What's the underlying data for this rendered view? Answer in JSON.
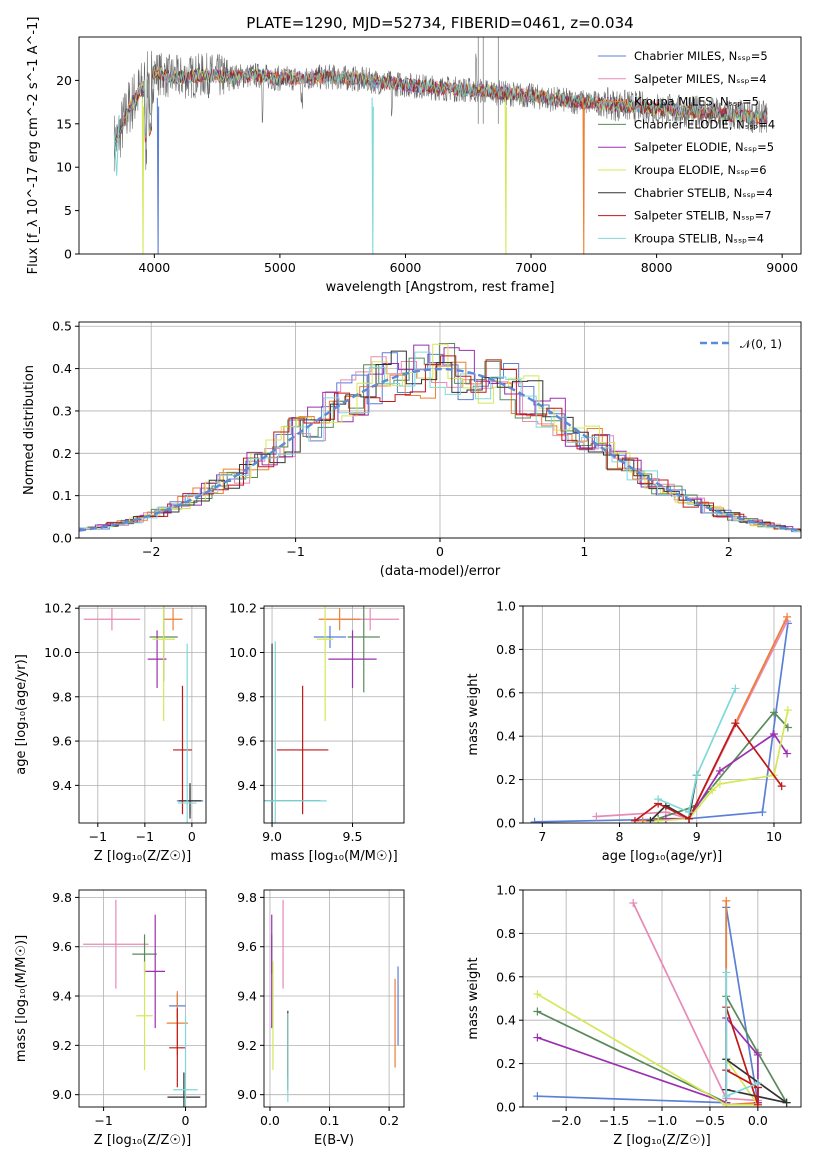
{
  "chart_data": [
    {
      "id": "spectrum",
      "type": "line",
      "title": "PLATE=1290, MJD=52734, FIBERID=0461, z=0.034",
      "xlabel": "wavelength [Angstrom, rest frame]",
      "ylabel": "Flux [f_λ 10^-17 erg cm^-2 s^-1 A^-1]",
      "xlim": [
        3400,
        9150
      ],
      "ylim": [
        0,
        25
      ],
      "xticks": [
        4000,
        5000,
        6000,
        7000,
        8000,
        9000
      ],
      "yticks": [
        0,
        5,
        10,
        15,
        20
      ],
      "grid": false,
      "legend_position": "top-right",
      "data": {
        "wavelength": [
          3700,
          3800,
          3900,
          4000,
          4100,
          4200,
          4400,
          4600,
          4800,
          5000,
          5200,
          5400,
          5600,
          5800,
          6000,
          6200,
          6400,
          6600,
          6800,
          7000,
          7200,
          7400,
          7600,
          7800,
          8000,
          8200,
          8400,
          8600,
          8800
        ],
        "flux": [
          13,
          17,
          19,
          21,
          20.5,
          20.3,
          20.6,
          20.4,
          20.6,
          20.2,
          20.3,
          20.4,
          20.2,
          19.8,
          19.5,
          19.2,
          19.0,
          18.8,
          18.5,
          18.2,
          17.8,
          17.5,
          17.3,
          17.0,
          16.8,
          16.5,
          16.3,
          16.0,
          15.8
        ]
      },
      "series": [
        {
          "name": "Chabrier MILES, N_SSP=5",
          "color": "#5b7fd6"
        },
        {
          "name": "Salpeter MILES, N_SSP=4",
          "color": "#e68ab7"
        },
        {
          "name": "Kroupa MILES, N_SSP=5",
          "color": "#ee7f33"
        },
        {
          "name": "Chabrier ELODIE, N_SSP=4",
          "color": "#5a8a5a"
        },
        {
          "name": "Salpeter ELODIE, N_SSP=5",
          "color": "#9c2fb0"
        },
        {
          "name": "Kroupa ELODIE, N_SSP=6",
          "color": "#d4e857"
        },
        {
          "name": "Chabrier STELIB, N_SSP=4",
          "color": "#333333"
        },
        {
          "name": "Salpeter STELIB, N_SSP=7",
          "color": "#c01818"
        },
        {
          "name": "Kroupa STELIB, N_SSP=4",
          "color": "#7fd9d9"
        }
      ]
    },
    {
      "id": "residuals",
      "type": "line",
      "xlabel": "(data-model)/error",
      "ylabel": "Normed distribution",
      "xlim": [
        -2.5,
        2.5
      ],
      "ylim": [
        0,
        0.51
      ],
      "xticks": [
        -2,
        -1,
        0,
        1,
        2
      ],
      "yticks": [
        0.0,
        0.1,
        0.2,
        0.3,
        0.4,
        0.5
      ],
      "grid": true,
      "legend_position": "top-right",
      "legend": [
        "𝒩(0, 1)"
      ],
      "series_colors": [
        "#5b7fd6",
        "#e68ab7",
        "#ee7f33",
        "#5a8a5a",
        "#9c2fb0",
        "#d4e857",
        "#333333",
        "#c01818",
        "#7fd9d9"
      ]
    },
    {
      "id": "age_vs_Z",
      "type": "scatter",
      "xlabel": "Z [log₁₀(Z/Z☉)]",
      "ylabel": "age  [log₁₀(age/yr)]",
      "xlim": [
        -1.2,
        0.15
      ],
      "ylim": [
        9.23,
        10.21
      ],
      "xticks": [
        -1,
        -0.5,
        0
      ],
      "yticks": [
        9.4,
        9.6,
        9.8,
        10.0,
        10.2
      ],
      "grid": true,
      "points": [
        {
          "color": "#5b7fd6",
          "x": -0.02,
          "y": 9.33,
          "xerr": 0.14,
          "yerr": 0.06
        },
        {
          "color": "#e68ab7",
          "x": -0.85,
          "y": 10.15,
          "xerr": 0.3,
          "yerr": 0.05
        },
        {
          "color": "#ee7f33",
          "x": -0.2,
          "y": 10.15,
          "xerr": 0.1,
          "yerr": 0.05
        },
        {
          "color": "#5a8a5a",
          "x": -0.3,
          "y": 10.07,
          "xerr": 0.15,
          "yerr": 0.2
        },
        {
          "color": "#9c2fb0",
          "x": -0.37,
          "y": 9.97,
          "xerr": 0.1,
          "yerr": 0.13
        },
        {
          "color": "#d4e857",
          "x": -0.3,
          "y": 10.06,
          "xerr": 0.12,
          "yerr": 0.37
        },
        {
          "color": "#333333",
          "x": -0.02,
          "y": 9.33,
          "xerr": 0.12,
          "yerr": 0.08
        },
        {
          "color": "#c01818",
          "x": -0.1,
          "y": 9.56,
          "xerr": 0.1,
          "yerr": 0.29
        },
        {
          "color": "#7fd9d9",
          "x": -0.05,
          "y": 9.32,
          "xerr": 0.1,
          "yerr": 0.72
        }
      ]
    },
    {
      "id": "age_vs_mass",
      "type": "scatter",
      "xlabel": "mass [log₁₀(M/M☉)]",
      "ylabel": "",
      "xlim": [
        8.95,
        9.82
      ],
      "ylim": [
        9.23,
        10.21
      ],
      "xticks": [
        9.0,
        9.5
      ],
      "yticks": [
        9.4,
        9.6,
        9.8,
        10.0,
        10.2
      ],
      "grid": true,
      "points": [
        {
          "color": "#5b7fd6",
          "x": 9.36,
          "y": 10.07,
          "xerr": 0.1,
          "yerr": 0.05
        },
        {
          "color": "#e68ab7",
          "x": 9.61,
          "y": 10.15,
          "xerr": 0.18,
          "yerr": 0.05
        },
        {
          "color": "#ee7f33",
          "x": 9.42,
          "y": 10.15,
          "xerr": 0.13,
          "yerr": 0.05
        },
        {
          "color": "#5a8a5a",
          "x": 9.57,
          "y": 10.07,
          "xerr": 0.1,
          "yerr": 0.25
        },
        {
          "color": "#9c2fb0",
          "x": 9.5,
          "y": 9.97,
          "xerr": 0.15,
          "yerr": 0.13
        },
        {
          "color": "#d4e857",
          "x": 9.33,
          "y": 10.06,
          "xerr": 0.05,
          "yerr": 0.37
        },
        {
          "color": "#333333",
          "x": 9.0,
          "y": 9.33,
          "xerr": 0.3,
          "yerr": 0.71
        },
        {
          "color": "#c01818",
          "x": 9.19,
          "y": 9.56,
          "xerr": 0.16,
          "yerr": 0.29
        },
        {
          "color": "#7fd9d9",
          "x": 9.02,
          "y": 9.33,
          "xerr": 0.32,
          "yerr": 0.72
        }
      ]
    },
    {
      "id": "weight_vs_age",
      "type": "line",
      "xlabel": "age  [log₁₀(age/yr)]",
      "ylabel": "mass weight",
      "xlim": [
        6.75,
        10.35
      ],
      "ylim": [
        0,
        1.0
      ],
      "xticks": [
        7,
        8,
        9,
        10
      ],
      "yticks": [
        0.0,
        0.2,
        0.4,
        0.6,
        0.8,
        1.0
      ],
      "grid": true,
      "series": [
        {
          "color": "#5b7fd6",
          "x": [
            6.9,
            8.9,
            9.85,
            10.18
          ],
          "y": [
            0.005,
            0.02,
            0.05,
            0.92
          ]
        },
        {
          "color": "#e68ab7",
          "x": [
            7.7,
            8.6,
            8.9,
            10.17
          ],
          "y": [
            0.03,
            0.05,
            0.02,
            0.93
          ]
        },
        {
          "color": "#ee7f33",
          "x": [
            8.3,
            8.9,
            9.5,
            10.17
          ],
          "y": [
            0.01,
            0.02,
            0.46,
            0.95
          ]
        },
        {
          "color": "#5a8a5a",
          "x": [
            8.5,
            9.0,
            10.0,
            10.18
          ],
          "y": [
            0.02,
            0.08,
            0.51,
            0.44
          ]
        },
        {
          "color": "#9c2fb0",
          "x": [
            8.6,
            8.9,
            9.3,
            10.0,
            10.17
          ],
          "y": [
            0.02,
            0.02,
            0.24,
            0.41,
            0.32
          ]
        },
        {
          "color": "#d4e857",
          "x": [
            8.5,
            8.9,
            9.2,
            9.3,
            10.0,
            10.18
          ],
          "y": [
            0.01,
            0.02,
            0.15,
            0.18,
            0.22,
            0.52
          ]
        },
        {
          "color": "#333333",
          "x": [
            8.4,
            8.6,
            8.9,
            9.0
          ],
          "y": [
            0.01,
            0.08,
            0.02,
            0.22
          ]
        },
        {
          "color": "#c01818",
          "x": [
            8.2,
            8.5,
            8.9,
            9.5,
            10.1
          ],
          "y": [
            0.01,
            0.09,
            0.02,
            0.46,
            0.17
          ]
        },
        {
          "color": "#7fd9d9",
          "x": [
            8.5,
            8.9,
            9.0,
            9.5
          ],
          "y": [
            0.11,
            0.05,
            0.22,
            0.62
          ]
        }
      ]
    },
    {
      "id": "mass_vs_Z",
      "type": "scatter",
      "xlabel": "Z [log₁₀(Z/Z☉)]",
      "ylabel": "mass [log₁₀(M/M☉)]",
      "xlim": [
        -1.3,
        0.25
      ],
      "ylim": [
        8.95,
        9.83
      ],
      "xticks": [
        -1,
        0
      ],
      "yticks": [
        9.0,
        9.2,
        9.4,
        9.6,
        9.8
      ],
      "grid": true,
      "points": [
        {
          "color": "#5b7fd6",
          "x": -0.1,
          "y": 9.36,
          "xerr": 0.1,
          "yerr": 0.05
        },
        {
          "color": "#e68ab7",
          "x": -0.85,
          "y": 9.61,
          "xerr": 0.4,
          "yerr": 0.18
        },
        {
          "color": "#ee7f33",
          "x": -0.1,
          "y": 9.29,
          "xerr": 0.13,
          "yerr": 0.13
        },
        {
          "color": "#5a8a5a",
          "x": -0.5,
          "y": 9.57,
          "xerr": 0.15,
          "yerr": 0.08
        },
        {
          "color": "#9c2fb0",
          "x": -0.37,
          "y": 9.5,
          "xerr": 0.12,
          "yerr": 0.23
        },
        {
          "color": "#d4e857",
          "x": -0.5,
          "y": 9.32,
          "xerr": 0.1,
          "yerr": 0.22
        },
        {
          "color": "#333333",
          "x": -0.02,
          "y": 8.99,
          "xerr": 0.2,
          "yerr": 0.1
        },
        {
          "color": "#c01818",
          "x": -0.1,
          "y": 9.19,
          "xerr": 0.1,
          "yerr": 0.16
        },
        {
          "color": "#7fd9d9",
          "x": 0.0,
          "y": 9.02,
          "xerr": 0.15,
          "yerr": 0.3
        }
      ]
    },
    {
      "id": "mass_vs_ebv",
      "type": "scatter",
      "xlabel": "E(B-V)",
      "ylabel": "",
      "xlim": [
        -0.01,
        0.225
      ],
      "ylim": [
        8.95,
        9.83
      ],
      "xticks": [
        0.0,
        0.1,
        0.2
      ],
      "yticks": [
        9.0,
        9.2,
        9.4,
        9.6,
        9.8
      ],
      "grid": true,
      "points": [
        {
          "color": "#5b7fd6",
          "x": 0.215,
          "y": 9.36,
          "yerr": 0.16
        },
        {
          "color": "#e68ab7",
          "x": 0.022,
          "y": 9.61,
          "yerr": 0.18
        },
        {
          "color": "#ee7f33",
          "x": 0.21,
          "y": 9.29,
          "yerr": 0.18
        },
        {
          "color": "#5a8a5a",
          "x": 0.003,
          "y": 9.57,
          "yerr": 0.08
        },
        {
          "color": "#9c2fb0",
          "x": 0.003,
          "y": 9.5,
          "yerr": 0.23
        },
        {
          "color": "#d4e857",
          "x": 0.005,
          "y": 9.32,
          "yerr": 0.22
        },
        {
          "color": "#333333",
          "x": 0.03,
          "y": 9.18,
          "yerr": 0.16
        },
        {
          "color": "#c01818",
          "x": 0.03,
          "y": 9.2,
          "yerr": 0.13
        },
        {
          "color": "#7fd9d9",
          "x": 0.03,
          "y": 9.15,
          "yerr": 0.18
        }
      ]
    },
    {
      "id": "weight_vs_Z",
      "type": "line",
      "xlabel": "Z [log₁₀(Z/Z☉)]",
      "ylabel": "mass weight",
      "xlim": [
        -2.45,
        0.45
      ],
      "ylim": [
        0,
        1.0
      ],
      "xticks": [
        -2.0,
        -1.5,
        -1.0,
        -0.5,
        0.0
      ],
      "yticks": [
        0.0,
        0.2,
        0.4,
        0.6,
        0.8,
        1.0
      ],
      "grid": true,
      "series": [
        {
          "color": "#5b7fd6",
          "x": [
            -2.3,
            -0.33,
            -0.33,
            0.0,
            0.0
          ],
          "y": [
            0.05,
            0.02,
            0.92,
            0.02,
            0.09
          ]
        },
        {
          "color": "#e68ab7",
          "x": [
            -1.3,
            -0.33,
            0.0,
            0.0
          ],
          "y": [
            0.94,
            0.04,
            0.03,
            0.02
          ]
        },
        {
          "color": "#ee7f33",
          "x": [
            -0.33,
            -0.33,
            0.0
          ],
          "y": [
            0.95,
            0.01,
            0.02
          ]
        },
        {
          "color": "#5a8a5a",
          "x": [
            -2.3,
            -0.33,
            -0.33,
            0.0,
            0.3
          ],
          "y": [
            0.44,
            0.02,
            0.51,
            0.25,
            0.02
          ]
        },
        {
          "color": "#9c2fb0",
          "x": [
            -2.3,
            -0.33,
            -0.33,
            0.0,
            0.0
          ],
          "y": [
            0.32,
            0.02,
            0.41,
            0.24,
            0.02
          ]
        },
        {
          "color": "#d4e857",
          "x": [
            -2.3,
            -0.33,
            0.0,
            -0.33
          ],
          "y": [
            0.52,
            0.01,
            0.01,
            0.22
          ]
        },
        {
          "color": "#333333",
          "x": [
            -0.33,
            0.3,
            -0.33
          ],
          "y": [
            0.08,
            0.02,
            0.22
          ]
        },
        {
          "color": "#c01818",
          "x": [
            -0.33,
            0.0,
            0.0,
            -0.33
          ],
          "y": [
            0.17,
            0.09,
            0.01,
            0.46
          ]
        },
        {
          "color": "#7fd9d9",
          "x": [
            -0.33,
            -0.33,
            0.0
          ],
          "y": [
            0.62,
            0.05,
            0.11
          ]
        }
      ]
    }
  ]
}
